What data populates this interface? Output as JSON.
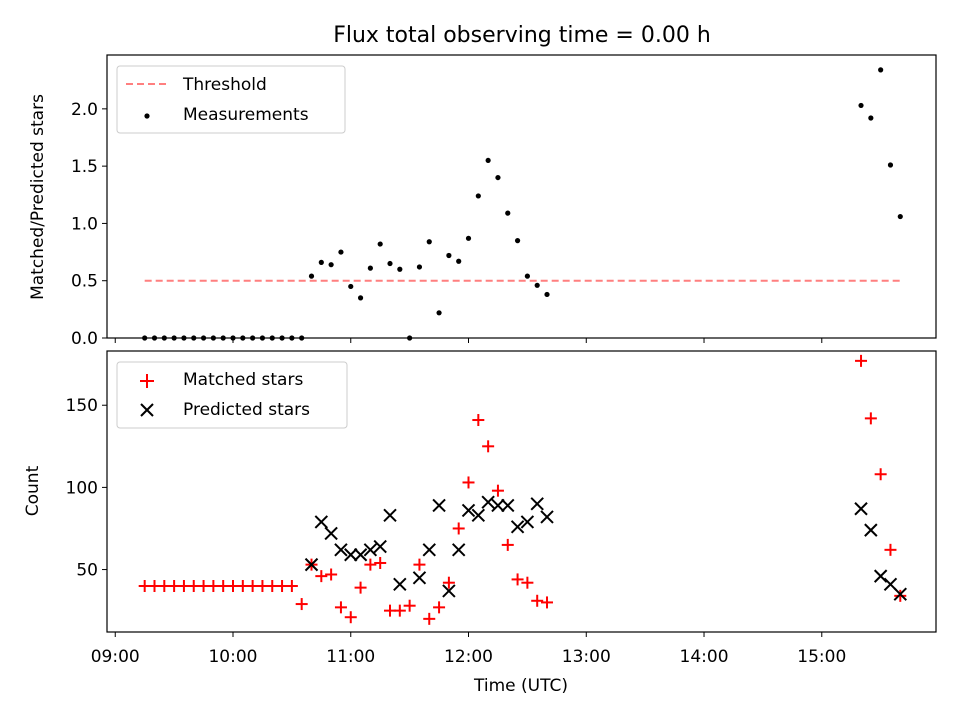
{
  "figure": {
    "title": "Flux total observing time = 0.00 h",
    "xlabel": "Time (UTC)",
    "xticks": [
      "09:00",
      "10:00",
      "11:00",
      "12:00",
      "13:00",
      "14:00",
      "15:00"
    ]
  },
  "chart_data": [
    {
      "type": "scatter",
      "ylabel": "Matched/Predicted stars",
      "xlim_hours": [
        8.93,
        15.97
      ],
      "ylim": [
        0,
        2.47
      ],
      "yticks": [
        "0.0",
        "0.5",
        "1.0",
        "1.5",
        "2.0"
      ],
      "grid": false,
      "legend_position": "upper-left",
      "series": [
        {
          "name": "Threshold",
          "kind": "dashed-line",
          "color": "#ff7f7f",
          "x_times": [
            "09:15",
            "15:40"
          ],
          "values": [
            0.5,
            0.5
          ]
        },
        {
          "name": "Measurements",
          "kind": "dot",
          "color": "#000000",
          "x_times": [
            "09:15",
            "09:20",
            "09:25",
            "09:30",
            "09:35",
            "09:40",
            "09:45",
            "09:50",
            "09:55",
            "10:00",
            "10:05",
            "10:10",
            "10:15",
            "10:20",
            "10:25",
            "10:30",
            "10:35",
            "10:40",
            "10:45",
            "10:50",
            "10:55",
            "11:00",
            "11:05",
            "11:10",
            "11:15",
            "11:20",
            "11:25",
            "11:30",
            "11:35",
            "11:40",
            "11:45",
            "11:50",
            "11:55",
            "12:00",
            "12:05",
            "12:10",
            "12:15",
            "12:20",
            "12:25",
            "12:30",
            "12:35",
            "12:40",
            "15:20",
            "15:25",
            "15:30",
            "15:35",
            "15:40"
          ],
          "values": [
            0,
            0,
            0,
            0,
            0,
            0,
            0,
            0,
            0,
            0,
            0,
            0,
            0,
            0,
            0,
            0,
            0,
            0.54,
            0.66,
            0.64,
            0.75,
            0.45,
            0.35,
            0.61,
            0.82,
            0.65,
            0.6,
            0.0,
            0.62,
            0.84,
            0.22,
            0.72,
            0.67,
            0.87,
            1.24,
            1.55,
            1.4,
            1.09,
            0.85,
            0.54,
            0.46,
            0.38,
            2.03,
            1.92,
            2.34,
            1.51,
            1.06
          ]
        }
      ]
    },
    {
      "type": "scatter",
      "ylabel": "Count",
      "xlim_hours": [
        8.93,
        15.97
      ],
      "ylim": [
        12,
        183
      ],
      "yticks": [
        "50",
        "100",
        "150"
      ],
      "grid": false,
      "legend_position": "upper-left",
      "series": [
        {
          "name": "Matched stars",
          "marker": "plus",
          "color": "#ff0000",
          "x_times": [
            "09:15",
            "09:20",
            "09:25",
            "09:30",
            "09:35",
            "09:40",
            "09:45",
            "09:50",
            "09:55",
            "10:00",
            "10:05",
            "10:10",
            "10:15",
            "10:20",
            "10:25",
            "10:30",
            "10:35",
            "10:40",
            "10:45",
            "10:50",
            "10:55",
            "11:00",
            "11:05",
            "11:10",
            "11:15",
            "11:20",
            "11:25",
            "11:30",
            "11:35",
            "11:40",
            "11:45",
            "11:50",
            "11:55",
            "12:00",
            "12:05",
            "12:10",
            "12:15",
            "12:20",
            "12:25",
            "12:30",
            "12:35",
            "12:40",
            "15:20",
            "15:25",
            "15:30",
            "15:35",
            "15:40"
          ],
          "values": [
            40,
            40,
            40,
            40,
            40,
            40,
            40,
            40,
            40,
            40,
            40,
            40,
            40,
            40,
            40,
            40,
            29,
            53,
            46,
            47,
            27,
            21,
            39,
            53,
            54,
            25,
            25,
            28,
            53,
            20,
            27,
            42,
            75,
            103,
            141,
            125,
            98,
            65,
            44,
            42,
            31,
            30,
            177,
            142,
            108,
            62,
            34
          ]
        },
        {
          "name": "Predicted stars",
          "marker": "x",
          "color": "#000000",
          "x_times": [
            "10:40",
            "10:45",
            "10:50",
            "10:55",
            "11:00",
            "11:05",
            "11:10",
            "11:15",
            "11:20",
            "11:25",
            "11:35",
            "11:40",
            "11:45",
            "11:50",
            "11:55",
            "12:00",
            "12:05",
            "12:10",
            "12:15",
            "12:20",
            "12:25",
            "12:30",
            "12:35",
            "12:40",
            "15:20",
            "15:25",
            "15:30",
            "15:35",
            "15:40"
          ],
          "values": [
            53,
            79,
            72,
            62,
            59,
            59,
            62,
            64,
            83,
            41,
            45,
            62,
            89,
            37,
            62,
            86,
            83,
            91,
            89,
            89,
            76,
            79,
            90,
            82,
            87,
            74,
            46,
            41,
            35
          ]
        }
      ]
    }
  ]
}
